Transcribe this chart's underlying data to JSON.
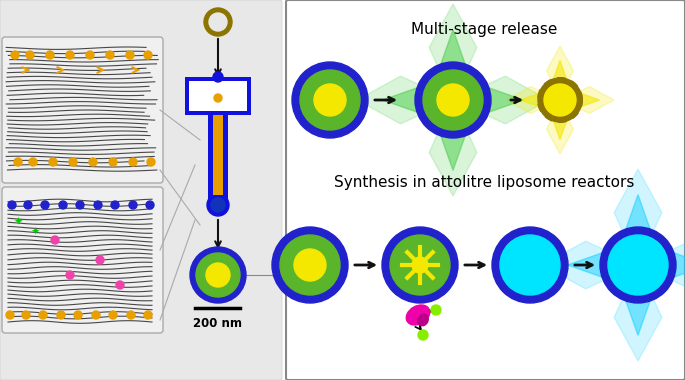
{
  "bg_color": "#ffffff",
  "right_panel_bg": "#ffffff",
  "right_panel_border": "#cccccc",
  "title1": "Multi-stage release",
  "title2": "Synthesis in attolitre liposome reactors",
  "scale_bar_label": "200 nm",
  "colors": {
    "blue_outer": "#2222cc",
    "green_inner": "#5ab52a",
    "yellow_core": "#f5e800",
    "olive_ring": "#8b7500",
    "cyan_fill": "#00e5ff",
    "green_glow": "#44cc44",
    "cyan_glow": "#00ccff",
    "yellow_glow": "#f5e800",
    "magenta": "#ee00aa",
    "arrow_color": "#111111",
    "gray_bg": "#d8d8d8",
    "blue_device": "#1111dd",
    "orange_pipette": "#e8a000"
  }
}
